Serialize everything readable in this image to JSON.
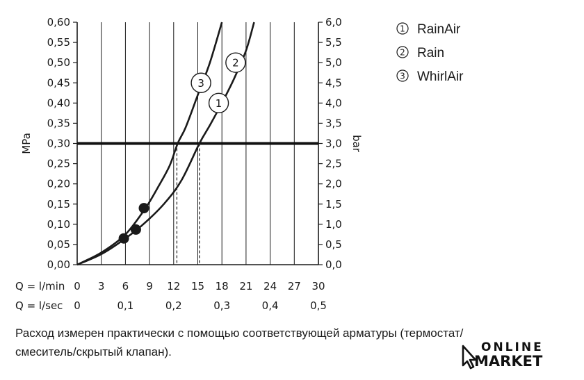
{
  "chart_data": {
    "type": "line",
    "ylabel_left": "MPa",
    "ylabel_right": "bar",
    "x_rows": [
      {
        "label": "Q = l/min",
        "ticks": [
          "0",
          "3",
          "6",
          "9",
          "12",
          "15",
          "18",
          "21",
          "24",
          "27",
          "30"
        ],
        "values": [
          0,
          3,
          6,
          9,
          12,
          15,
          18,
          21,
          24,
          27,
          30
        ]
      },
      {
        "label": "Q = l/sec",
        "ticks": [
          "0",
          "0,1",
          "0,2",
          "0,3",
          "0,4",
          "0,5"
        ],
        "values": [
          0,
          6,
          12,
          18,
          24,
          30
        ]
      }
    ],
    "xlim": [
      0,
      30
    ],
    "ylim_left": [
      0,
      0.6
    ],
    "ylim_right": [
      0,
      6
    ],
    "y_ticks_left": [
      "0,00",
      "0,05",
      "0,10",
      "0,15",
      "0,20",
      "0,25",
      "0,30",
      "0,35",
      "0,40",
      "0,45",
      "0,50",
      "0,55",
      "0,60"
    ],
    "y_ticks_right": [
      "0,0",
      "0,5",
      "1,0",
      "1,5",
      "2,0",
      "2,5",
      "3,0",
      "3,5",
      "4,0",
      "4,5",
      "5,0",
      "5,5",
      "6,0"
    ],
    "grid": "vertical only",
    "reference_line": {
      "y": 0.3
    },
    "series": [
      {
        "name": "RainAir",
        "marker": "1",
        "x": [
          0,
          3,
          6,
          8.5,
          11,
          13,
          15.2,
          16.5,
          18,
          19.5,
          21,
          22
        ],
        "y": [
          0,
          0.026,
          0.065,
          0.105,
          0.155,
          0.21,
          0.3,
          0.345,
          0.4,
          0.46,
          0.53,
          0.6
        ],
        "callout_at": [
          17.6,
          0.4
        ],
        "dot": [
          7.3,
          0.087
        ],
        "dashed_drop_x": 15.2
      },
      {
        "name": "Rain",
        "marker": "2",
        "x": [
          0,
          3,
          6,
          8.5,
          11,
          13,
          15.2,
          16.5,
          18,
          19.5,
          21,
          22
        ],
        "y": [
          0,
          0.026,
          0.065,
          0.105,
          0.155,
          0.21,
          0.3,
          0.345,
          0.4,
          0.46,
          0.53,
          0.6
        ],
        "callout_at": [
          19.7,
          0.5
        ],
        "dot": [
          5.8,
          0.065
        ],
        "dashed_drop_x": 15.2
      },
      {
        "name": "WhirlAir",
        "marker": "3",
        "x": [
          0,
          3,
          6,
          8.5,
          10,
          11.5,
          12.5,
          13.5,
          15,
          16.5,
          18
        ],
        "y": [
          0,
          0.03,
          0.075,
          0.14,
          0.19,
          0.245,
          0.3,
          0.34,
          0.42,
          0.5,
          0.6
        ],
        "callout_at": [
          15.4,
          0.45
        ],
        "dot": [
          8.3,
          0.14
        ],
        "dashed_drop_x": 12.4
      }
    ],
    "legend": "top-right"
  },
  "legend": [
    {
      "num": "1",
      "label": "RainAir"
    },
    {
      "num": "2",
      "label": "Rain"
    },
    {
      "num": "3",
      "label": "WhirlAir"
    }
  ],
  "caption": {
    "line1": "Расход измерен практически с помощью соответствующей арматуры (термостат/",
    "line2": "смеситель/скрытый клапан)."
  },
  "logo": {
    "line1": "ONLINE",
    "line2": "MARKET"
  },
  "colors": {
    "ink": "#1a1a1a",
    "background": "#ffffff"
  }
}
